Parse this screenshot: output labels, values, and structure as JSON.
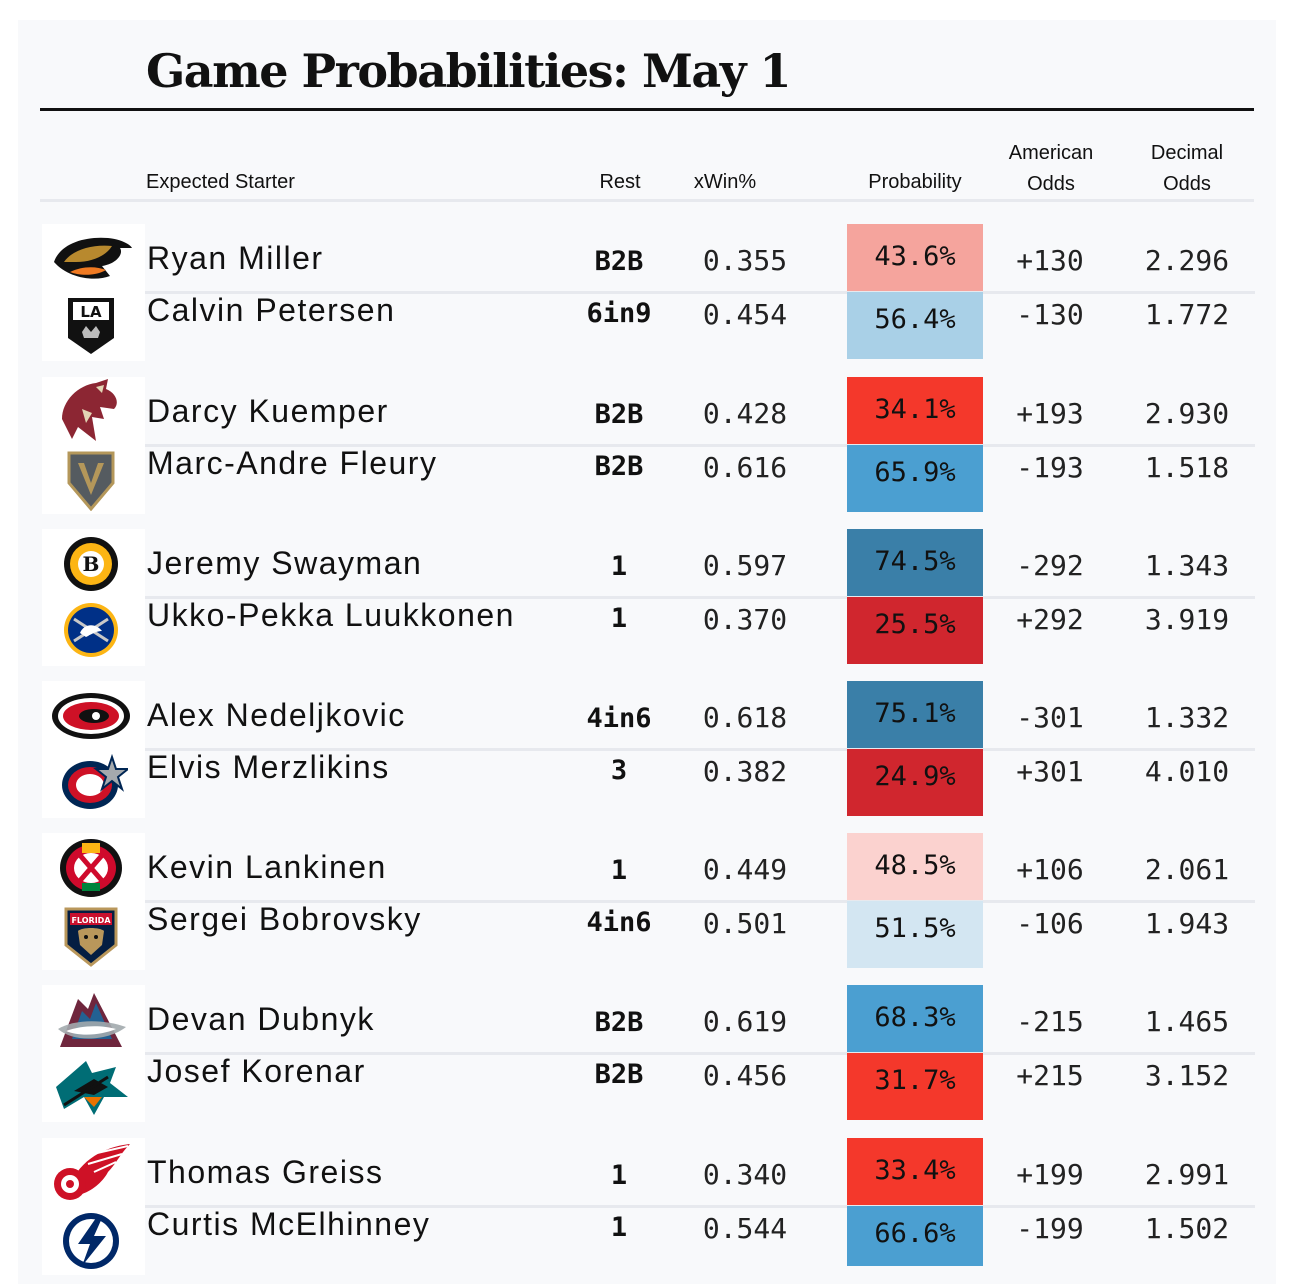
{
  "title": "Game Probabilities: May 1",
  "headers": {
    "starter": "Expected Starter",
    "rest": "Rest",
    "xwin": "xWin%",
    "probability": "Probability",
    "american_1": "American",
    "american_2": "Odds",
    "decimal_1": "Decimal",
    "decimal_2": "Odds"
  },
  "games": [
    {
      "rows": [
        {
          "team_icon": "ducks-logo-icon",
          "name": "Ryan Miller",
          "rest": "B2B",
          "xwin": "0.355",
          "prob": "43.6%",
          "prob_color": "#f5a49d",
          "american": "+130",
          "decimal": "2.296"
        },
        {
          "team_icon": "kings-logo-icon",
          "name": "Calvin Petersen",
          "rest": "6in9",
          "xwin": "0.454",
          "prob": "56.4%",
          "prob_color": "#a9d0e7",
          "american": "-130",
          "decimal": "1.772"
        }
      ]
    },
    {
      "rows": [
        {
          "team_icon": "coyotes-logo-icon",
          "name": "Darcy Kuemper",
          "rest": "B2B",
          "xwin": "0.428",
          "prob": "34.1%",
          "prob_color": "#f4382b",
          "american": "+193",
          "decimal": "2.930"
        },
        {
          "team_icon": "golden-knights-logo-icon",
          "name": "Marc-Andre Fleury",
          "rest": "B2B",
          "xwin": "0.616",
          "prob": "65.9%",
          "prob_color": "#4b9fd1",
          "american": "-193",
          "decimal": "1.518"
        }
      ]
    },
    {
      "rows": [
        {
          "team_icon": "bruins-logo-icon",
          "name": "Jeremy Swayman",
          "rest": "1",
          "xwin": "0.597",
          "prob": "74.5%",
          "prob_color": "#3a7fa8",
          "american": "-292",
          "decimal": "1.343"
        },
        {
          "team_icon": "sabres-logo-icon",
          "name": "Ukko-Pekka Luukkonen",
          "rest": "1",
          "xwin": "0.370",
          "prob": "25.5%",
          "prob_color": "#d0262e",
          "american": "+292",
          "decimal": "3.919"
        }
      ]
    },
    {
      "rows": [
        {
          "team_icon": "hurricanes-logo-icon",
          "name": "Alex Nedeljkovic",
          "rest": "4in6",
          "xwin": "0.618",
          "prob": "75.1%",
          "prob_color": "#3a7fa8",
          "american": "-301",
          "decimal": "1.332"
        },
        {
          "team_icon": "blue-jackets-logo-icon",
          "name": "Elvis Merzlikins",
          "rest": "3",
          "xwin": "0.382",
          "prob": "24.9%",
          "prob_color": "#d0262e",
          "american": "+301",
          "decimal": "4.010"
        }
      ]
    },
    {
      "rows": [
        {
          "team_icon": "blackhawks-logo-icon",
          "name": "Kevin Lankinen",
          "rest": "1",
          "xwin": "0.449",
          "prob": "48.5%",
          "prob_color": "#fbd2cf",
          "american": "+106",
          "decimal": "2.061"
        },
        {
          "team_icon": "panthers-logo-icon",
          "name": "Sergei Bobrovsky",
          "rest": "4in6",
          "xwin": "0.501",
          "prob": "51.5%",
          "prob_color": "#d3e6f2",
          "american": "-106",
          "decimal": "1.943"
        }
      ]
    },
    {
      "rows": [
        {
          "team_icon": "avalanche-logo-icon",
          "name": "Devan Dubnyk",
          "rest": "B2B",
          "xwin": "0.619",
          "prob": "68.3%",
          "prob_color": "#4b9fd1",
          "american": "-215",
          "decimal": "1.465"
        },
        {
          "team_icon": "sharks-logo-icon",
          "name": "Josef Korenar",
          "rest": "B2B",
          "xwin": "0.456",
          "prob": "31.7%",
          "prob_color": "#f4382b",
          "american": "+215",
          "decimal": "3.152"
        }
      ]
    },
    {
      "rows": [
        {
          "team_icon": "red-wings-logo-icon",
          "name": "Thomas Greiss",
          "rest": "1",
          "xwin": "0.340",
          "prob": "33.4%",
          "prob_color": "#f4382b",
          "american": "+199",
          "decimal": "2.991"
        },
        {
          "team_icon": "lightning-logo-icon",
          "name": "Curtis McElhinney",
          "rest": "1",
          "xwin": "0.544",
          "prob": "66.6%",
          "prob_color": "#4b9fd1",
          "american": "-199",
          "decimal": "1.502"
        }
      ]
    }
  ]
}
